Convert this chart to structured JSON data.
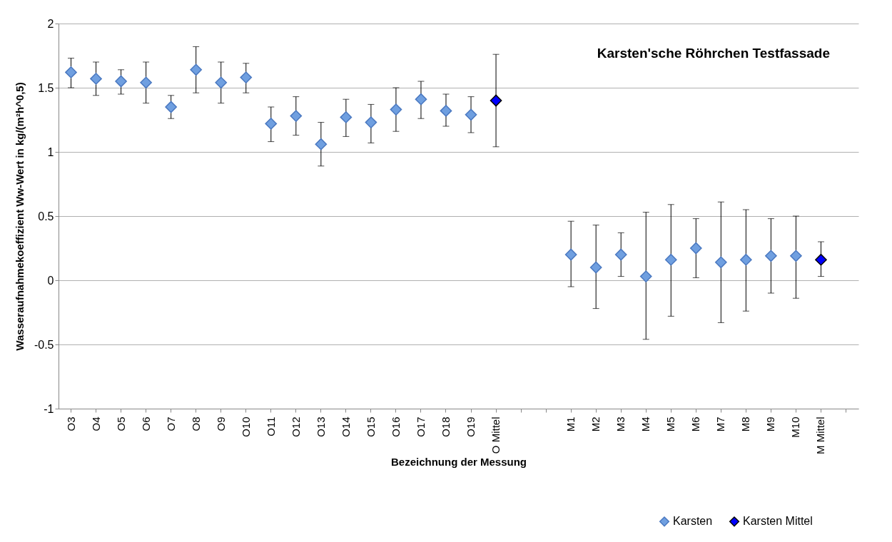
{
  "chart_data": {
    "type": "scatter",
    "title": "Karsten'sche Röhrchen Testfassade",
    "xlabel": "Bezeichnung der Messung",
    "ylabel": "Wasseraufnahmekoeffizient Ww-Wert in kg/(m²h^0,5)",
    "categories": [
      "O3",
      "O4",
      "O5",
      "O6",
      "O7",
      "O8",
      "O9",
      "O10",
      "O11",
      "O12",
      "O13",
      "O14",
      "O15",
      "O16",
      "O17",
      "O18",
      "O19",
      "O Mittel",
      null,
      null,
      "M1",
      "M2",
      "M3",
      "M4",
      "M5",
      "M6",
      "M7",
      "M8",
      "M9",
      "M10",
      "M Mittel",
      null
    ],
    "series": [
      {
        "name": "Karsten",
        "color": "#6f9fe0",
        "values": [
          1.62,
          1.57,
          1.55,
          1.54,
          1.35,
          1.64,
          1.54,
          1.58,
          1.22,
          1.28,
          1.06,
          1.27,
          1.23,
          1.33,
          1.41,
          1.32,
          1.29,
          null,
          null,
          null,
          0.2,
          0.1,
          0.2,
          0.03,
          0.16,
          0.25,
          0.14,
          0.16,
          0.19,
          0.19,
          null,
          null
        ],
        "errors": [
          [
            1.5,
            1.73
          ],
          [
            1.44,
            1.7
          ],
          [
            1.45,
            1.64
          ],
          [
            1.38,
            1.7
          ],
          [
            1.26,
            1.44
          ],
          [
            1.46,
            1.82
          ],
          [
            1.38,
            1.7
          ],
          [
            1.46,
            1.69
          ],
          [
            1.08,
            1.35
          ],
          [
            1.13,
            1.43
          ],
          [
            0.89,
            1.23
          ],
          [
            1.12,
            1.41
          ],
          [
            1.07,
            1.37
          ],
          [
            1.16,
            1.5
          ],
          [
            1.26,
            1.55
          ],
          [
            1.2,
            1.45
          ],
          [
            1.15,
            1.43
          ],
          null,
          null,
          null,
          [
            -0.05,
            0.46
          ],
          [
            -0.22,
            0.43
          ],
          [
            0.03,
            0.37
          ],
          [
            -0.46,
            0.53
          ],
          [
            -0.28,
            0.59
          ],
          [
            0.02,
            0.48
          ],
          [
            -0.33,
            0.61
          ],
          [
            -0.24,
            0.55
          ],
          [
            -0.1,
            0.48
          ],
          [
            -0.14,
            0.5
          ],
          null,
          null
        ]
      },
      {
        "name": "Karsten Mittel",
        "color": "#0000ff",
        "values": [
          null,
          null,
          null,
          null,
          null,
          null,
          null,
          null,
          null,
          null,
          null,
          null,
          null,
          null,
          null,
          null,
          null,
          1.4,
          null,
          null,
          null,
          null,
          null,
          null,
          null,
          null,
          null,
          null,
          null,
          null,
          0.16,
          null
        ],
        "errors": [
          null,
          null,
          null,
          null,
          null,
          null,
          null,
          null,
          null,
          null,
          null,
          null,
          null,
          null,
          null,
          null,
          null,
          [
            1.04,
            1.76
          ],
          null,
          null,
          null,
          null,
          null,
          null,
          null,
          null,
          null,
          null,
          null,
          null,
          [
            0.03,
            0.3
          ],
          null
        ]
      }
    ],
    "ylim": [
      -1,
      2
    ],
    "yticks": [
      -1,
      -0.5,
      0,
      0.5,
      1,
      1.5,
      2
    ],
    "grid": "y",
    "legend": "bottom right",
    "marker": "diamond"
  }
}
